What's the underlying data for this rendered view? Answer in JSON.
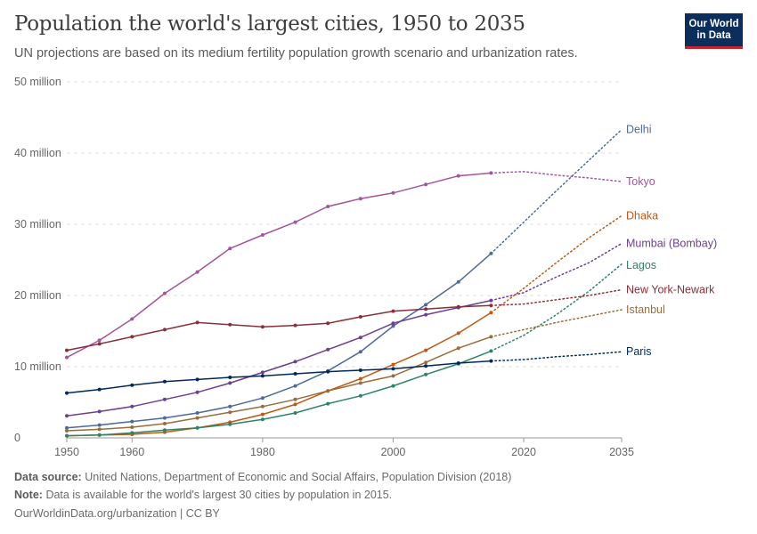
{
  "header": {
    "title": "Population the world's largest cities, 1950 to 2035",
    "subtitle": "UN projections are based on its medium fertility population growth scenario and urbanization rates.",
    "logo_line1": "Our World",
    "logo_line2": "in Data"
  },
  "footer": {
    "source_label": "Data source:",
    "source_text": "United Nations, Department of Economic and Social Affairs, Population Division (2018)",
    "note_label": "Note:",
    "note_text": "Data is available for the world's largest 30 cities by population in 2015.",
    "url": "OurWorldinData.org/urbanization | CC BY"
  },
  "colors": {
    "Delhi": "#4c6a9c",
    "Tokyo": "#a2559c",
    "Dhaka": "#be5915",
    "Mumbai (Bombay)": "#6d3e91",
    "Lagos": "#2c8465",
    "New York-Newark": "#883039",
    "Istanbul": "#996d39",
    "Paris": "#00295b",
    "grid": "#dddddd",
    "axis": "#999999"
  },
  "chart_data": {
    "type": "line",
    "x": [
      1950,
      1955,
      1960,
      1965,
      1970,
      1975,
      1980,
      1985,
      1990,
      1995,
      2000,
      2005,
      2010,
      2015,
      2020,
      2025,
      2030,
      2035
    ],
    "observed_until": 2015,
    "projected_from": 2015,
    "xlim": [
      1950,
      2035
    ],
    "ylim": [
      0,
      50000000
    ],
    "x_ticks": [
      1950,
      1960,
      1980,
      2000,
      2020,
      2035
    ],
    "y_ticks": [
      {
        "value": 0,
        "label": "0"
      },
      {
        "value": 10000000,
        "label": "10 million"
      },
      {
        "value": 20000000,
        "label": "20 million"
      },
      {
        "value": 30000000,
        "label": "30 million"
      },
      {
        "value": 40000000,
        "label": "40 million"
      },
      {
        "value": 50000000,
        "label": "50 million"
      }
    ],
    "grid": true,
    "legend": "inline-right",
    "series": [
      {
        "name": "Tokyo",
        "values": [
          11300000,
          13700000,
          16700000,
          20300000,
          23300000,
          26600000,
          28500000,
          30300000,
          32500000,
          33600000,
          34400000,
          35600000,
          36800000,
          37200000,
          37400000,
          36900000,
          36500000,
          36000000
        ]
      },
      {
        "name": "Delhi",
        "values": [
          1400000,
          1800000,
          2300000,
          2800000,
          3500000,
          4400000,
          5600000,
          7300000,
          9400000,
          12100000,
          15700000,
          18700000,
          21900000,
          25900000,
          30300000,
          34700000,
          39000000,
          43300000
        ]
      },
      {
        "name": "Dhaka",
        "values": [
          300000,
          400000,
          500000,
          800000,
          1400000,
          2200000,
          3300000,
          4700000,
          6600000,
          8300000,
          10300000,
          12300000,
          14700000,
          17600000,
          21000000,
          24600000,
          28100000,
          31200000
        ]
      },
      {
        "name": "Mumbai (Bombay)",
        "values": [
          3100000,
          3700000,
          4400000,
          5400000,
          6400000,
          7700000,
          9200000,
          10700000,
          12400000,
          14100000,
          16100000,
          17300000,
          18300000,
          19300000,
          20400000,
          22600000,
          24600000,
          27300000
        ]
      },
      {
        "name": "Lagos",
        "values": [
          300000,
          400000,
          700000,
          1100000,
          1400000,
          1900000,
          2600000,
          3500000,
          4800000,
          5900000,
          7300000,
          8900000,
          10400000,
          12200000,
          14400000,
          17300000,
          20600000,
          24400000
        ]
      },
      {
        "name": "New York-Newark",
        "values": [
          12300000,
          13200000,
          14200000,
          15200000,
          16200000,
          15900000,
          15600000,
          15800000,
          16100000,
          17000000,
          17800000,
          18100000,
          18400000,
          18600000,
          18800000,
          19400000,
          20000000,
          20800000
        ]
      },
      {
        "name": "Istanbul",
        "values": [
          1000000,
          1200000,
          1500000,
          2000000,
          2800000,
          3600000,
          4400000,
          5400000,
          6600000,
          7700000,
          8700000,
          10600000,
          12600000,
          14200000,
          15200000,
          16200000,
          17100000,
          18000000
        ]
      },
      {
        "name": "Paris",
        "values": [
          6300000,
          6800000,
          7400000,
          7900000,
          8200000,
          8500000,
          8700000,
          9000000,
          9300000,
          9500000,
          9700000,
          10100000,
          10500000,
          10800000,
          11000000,
          11400000,
          11700000,
          12100000
        ]
      }
    ]
  }
}
